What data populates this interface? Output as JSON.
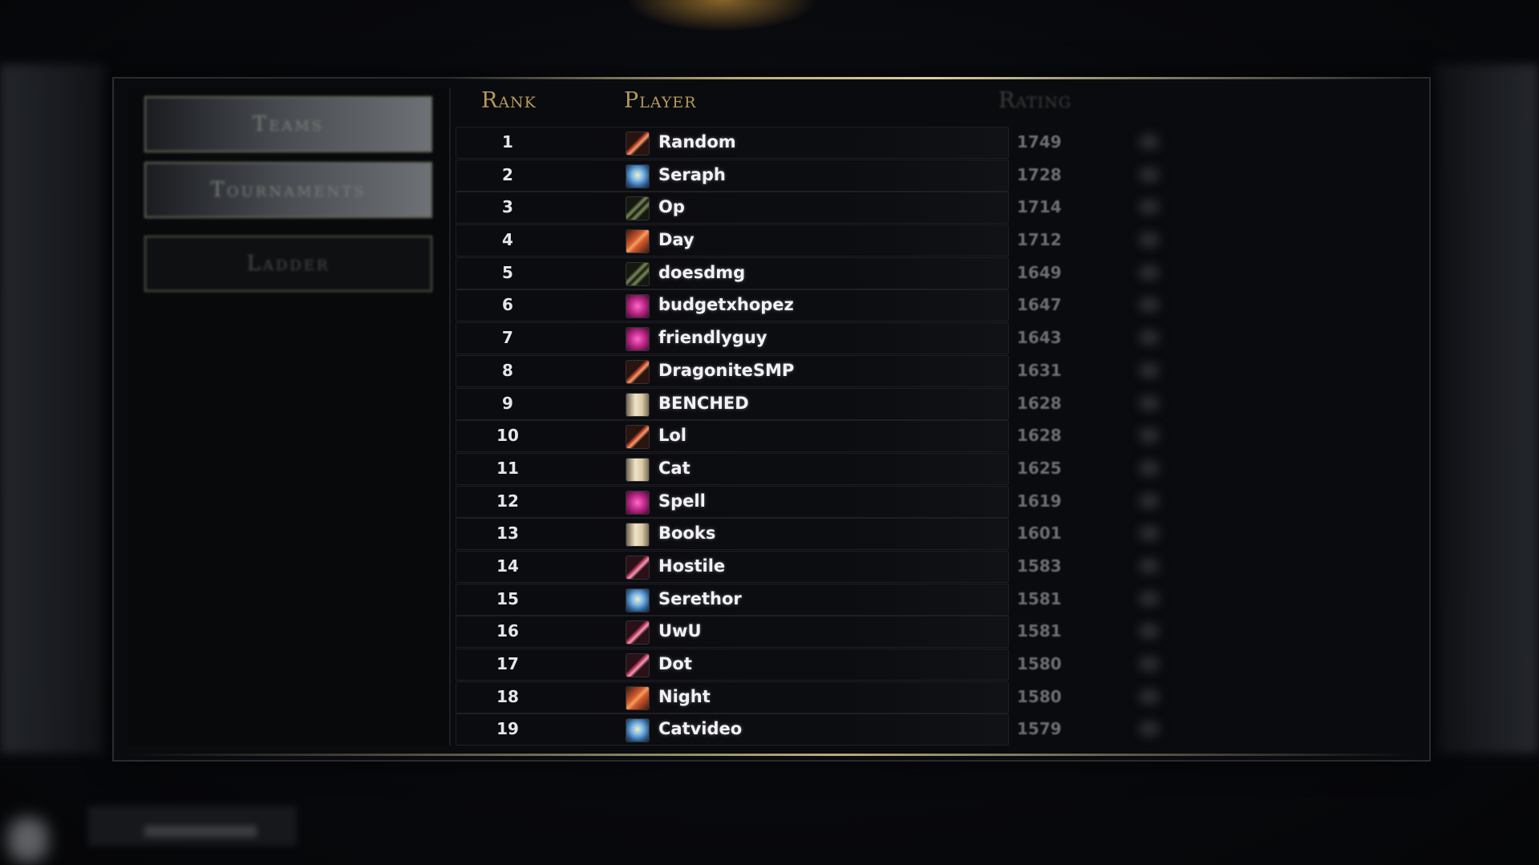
{
  "nav": {
    "items": [
      {
        "label": "Teams",
        "active": false
      },
      {
        "label": "Tournaments",
        "active": false
      },
      {
        "label": "Ladder",
        "active": true
      }
    ]
  },
  "table": {
    "headers": {
      "rank": "Rank",
      "player": "Player",
      "rating": "Rating"
    },
    "rows": [
      {
        "rank": "1",
        "player": "Random",
        "rating": "1749",
        "icon": "sword-icon"
      },
      {
        "rank": "2",
        "player": "Seraph",
        "rating": "1728",
        "icon": "shield-icon"
      },
      {
        "rank": "3",
        "player": "Op",
        "rating": "1714",
        "icon": "bow-icon"
      },
      {
        "rank": "4",
        "player": "Day",
        "rating": "1712",
        "icon": "claws-icon"
      },
      {
        "rank": "5",
        "player": "doesdmg",
        "rating": "1649",
        "icon": "bow-icon"
      },
      {
        "rank": "6",
        "player": "budgetxhopez",
        "rating": "1647",
        "icon": "orb-icon"
      },
      {
        "rank": "7",
        "player": "friendlyguy",
        "rating": "1643",
        "icon": "orb-icon"
      },
      {
        "rank": "8",
        "player": "DragoniteSMP",
        "rating": "1631",
        "icon": "sword-icon"
      },
      {
        "rank": "9",
        "player": "BENCHED",
        "rating": "1628",
        "icon": "scroll-icon"
      },
      {
        "rank": "10",
        "player": "Lol",
        "rating": "1628",
        "icon": "sword-icon"
      },
      {
        "rank": "11",
        "player": "Cat",
        "rating": "1625",
        "icon": "scroll-icon"
      },
      {
        "rank": "12",
        "player": "Spell",
        "rating": "1619",
        "icon": "orb-icon"
      },
      {
        "rank": "13",
        "player": "Books",
        "rating": "1601",
        "icon": "scroll-icon"
      },
      {
        "rank": "14",
        "player": "Hostile",
        "rating": "1583",
        "icon": "staff-icon"
      },
      {
        "rank": "15",
        "player": "Serethor",
        "rating": "1581",
        "icon": "shield-icon"
      },
      {
        "rank": "16",
        "player": "UwU",
        "rating": "1581",
        "icon": "staff-icon"
      },
      {
        "rank": "17",
        "player": "Dot",
        "rating": "1580",
        "icon": "staff-icon"
      },
      {
        "rank": "18",
        "player": "Night",
        "rating": "1580",
        "icon": "claws-icon"
      },
      {
        "rank": "19",
        "player": "Catvideo",
        "rating": "1579",
        "icon": "shield-icon"
      }
    ]
  },
  "colors": {
    "header_gold": "#b59a5a",
    "name_text": "#f2f2f5",
    "rating_text": "#6c6e70"
  }
}
